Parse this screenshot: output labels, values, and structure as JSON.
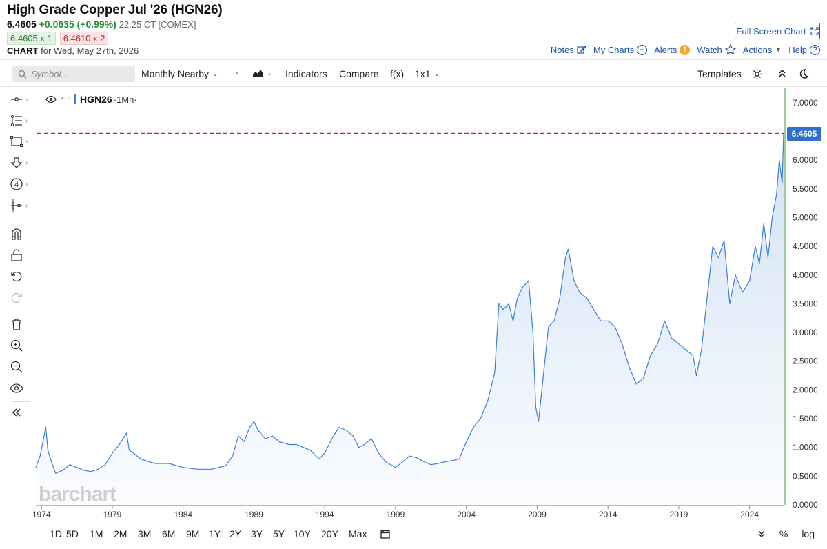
{
  "header": {
    "title": "High Grade Copper Jul '26 (HGN26)",
    "last_price": "6.4605",
    "change": "+0.0635 (+0.99%)",
    "time_exchange": "22:25 CT [COMEX]",
    "bid": "6.4605 x 1",
    "ask": "6.4610 x 2",
    "chart_label": "CHART",
    "chart_for": "for Wed, May 27th, 2026",
    "fullscreen_label": "Full Screen Chart",
    "nav": {
      "notes": "Notes",
      "my_charts": "My Charts",
      "alerts": "Alerts",
      "alert_badge": "!",
      "watch": "Watch",
      "actions": "Actions",
      "help": "Help"
    }
  },
  "toolbar": {
    "search_placeholder": "Symbol...",
    "period": "Monthly Nearby",
    "indicators": "Indicators",
    "compare": "Compare",
    "fx": "f(x)",
    "layout": "1x1",
    "templates": "Templates"
  },
  "left_tools": [
    "crosshair-tool-icon",
    "fib-tool-icon",
    "rectangle-tool-icon",
    "arrow-down-tool-icon",
    "count-tool-icon",
    "pattern-tool-icon",
    "magnet-icon",
    "lock-icon",
    "undo-icon",
    "redo-icon",
    "trash-icon",
    "zoom-in-icon",
    "zoom-out-icon",
    "eye-icon",
    "collapse-icon"
  ],
  "legend": {
    "symbol": "HGN26",
    "interval": "·1Mn·",
    "dots": "···"
  },
  "watermark": "barchart",
  "current_price_tag": "6.4605",
  "ranges": [
    "1D",
    "5D",
    "1M",
    "2M",
    "3M",
    "6M",
    "9M",
    "1Y",
    "2Y",
    "3Y",
    "5Y",
    "10Y",
    "20Y",
    "Max"
  ],
  "bottom_right": {
    "percent": "%",
    "log": "log"
  },
  "colors": {
    "line": "#3b7dd8",
    "area_top": "#cfe0f5",
    "current_line": "#cc2222",
    "accent": "#2c6fd1",
    "change_up": "#2e8b3a"
  },
  "chart_data": {
    "type": "area",
    "y_ticks": [
      "7.0000",
      "6.5000",
      "6.0000",
      "5.5000",
      "5.0000",
      "4.5000",
      "4.0000",
      "3.5000",
      "3.0000",
      "2.5000",
      "2.0000",
      "1.5000",
      "1.0000",
      "0.5000",
      "0.0000"
    ],
    "x_ticks": [
      "1974",
      "1979",
      "1984",
      "1989",
      "1994",
      "1999",
      "2004",
      "2009",
      "2014",
      "2019",
      "2024"
    ],
    "ylim": [
      0,
      7.25
    ],
    "xlim": [
      1973.6,
      2026.45
    ],
    "current_value": 6.4605,
    "series": [
      {
        "x": [
          1973.6,
          1973.9,
          1974.1,
          1974.3,
          1974.45,
          1974.7,
          1975.0,
          1975.5,
          1976.0,
          1976.5,
          1977.0,
          1977.5,
          1978.0,
          1978.5,
          1979.0,
          1979.5,
          1980.0,
          1980.2,
          1980.5,
          1981.0,
          1982.0,
          1983.0,
          1984.0,
          1985.0,
          1986.0,
          1987.0,
          1987.5,
          1987.9,
          1988.3,
          1988.7,
          1989.0,
          1989.3,
          1989.8,
          1990.3,
          1990.8,
          1991.5,
          1992.0,
          1992.5,
          1993.0,
          1993.6,
          1994.0,
          1994.5,
          1995.0,
          1995.5,
          1996.0,
          1996.4,
          1996.8,
          1997.3,
          1997.8,
          1998.3,
          1999.0,
          1999.5,
          2000.0,
          2000.5,
          2001.0,
          2001.5,
          2002.0,
          2002.5,
          2003.0,
          2003.5,
          2004.0,
          2004.5,
          2005.0,
          2005.5,
          2006.0,
          2006.3,
          2006.6,
          2007.0,
          2007.3,
          2007.6,
          2008.0,
          2008.4,
          2008.7,
          2008.9,
          2009.1,
          2009.5,
          2009.8,
          2010.2,
          2010.6,
          2011.0,
          2011.2,
          2011.6,
          2012.0,
          2012.5,
          2013.0,
          2013.5,
          2014.0,
          2014.5,
          2015.0,
          2015.5,
          2016.0,
          2016.5,
          2017.0,
          2017.5,
          2018.0,
          2018.5,
          2019.0,
          2019.5,
          2020.0,
          2020.25,
          2020.6,
          2021.0,
          2021.4,
          2021.8,
          2022.2,
          2022.6,
          2023.0,
          2023.5,
          2024.0,
          2024.4,
          2024.7,
          2025.0,
          2025.3,
          2025.6,
          2025.9,
          2026.1,
          2026.3,
          2026.4
        ],
        "y": [
          0.65,
          0.85,
          1.1,
          1.35,
          0.95,
          0.75,
          0.55,
          0.6,
          0.7,
          0.65,
          0.6,
          0.58,
          0.62,
          0.7,
          0.9,
          1.05,
          1.25,
          0.95,
          0.9,
          0.8,
          0.72,
          0.72,
          0.65,
          0.62,
          0.62,
          0.68,
          0.85,
          1.2,
          1.1,
          1.35,
          1.45,
          1.3,
          1.15,
          1.2,
          1.1,
          1.05,
          1.05,
          1.0,
          0.95,
          0.8,
          0.9,
          1.15,
          1.35,
          1.3,
          1.2,
          1.0,
          1.05,
          1.15,
          0.9,
          0.75,
          0.65,
          0.75,
          0.85,
          0.82,
          0.75,
          0.7,
          0.72,
          0.75,
          0.77,
          0.8,
          1.1,
          1.35,
          1.5,
          1.8,
          2.3,
          3.5,
          3.4,
          3.5,
          3.2,
          3.6,
          3.8,
          3.9,
          3.0,
          1.7,
          1.45,
          2.4,
          3.1,
          3.2,
          3.6,
          4.3,
          4.45,
          3.9,
          3.7,
          3.6,
          3.4,
          3.2,
          3.2,
          3.1,
          2.8,
          2.4,
          2.1,
          2.2,
          2.6,
          2.8,
          3.2,
          2.9,
          2.8,
          2.7,
          2.6,
          2.25,
          2.7,
          3.6,
          4.5,
          4.3,
          4.6,
          3.5,
          4.0,
          3.7,
          3.9,
          4.5,
          4.2,
          4.9,
          4.3,
          5.0,
          5.4,
          6.0,
          5.6,
          6.46
        ]
      }
    ]
  }
}
